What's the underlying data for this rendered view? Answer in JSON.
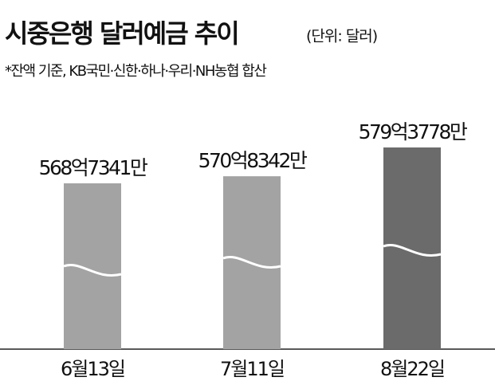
{
  "chart_data": {
    "type": "bar",
    "title": "시중은행 달러예금 추이",
    "subtitle": "(단위: 달러)",
    "note": "*잔액 기준, KB국민·신한·하나·우리·NH농협 합산",
    "categories": [
      "6월13일",
      "7월11일",
      "8월22일"
    ],
    "values": [
      56873410000,
      57083420000,
      57937780000
    ],
    "value_labels": [
      "568억7341만",
      "570억8342만",
      "579억3778만"
    ],
    "colors": [
      "#a3a3a3",
      "#a3a3a3",
      "#6b6b6b"
    ]
  }
}
